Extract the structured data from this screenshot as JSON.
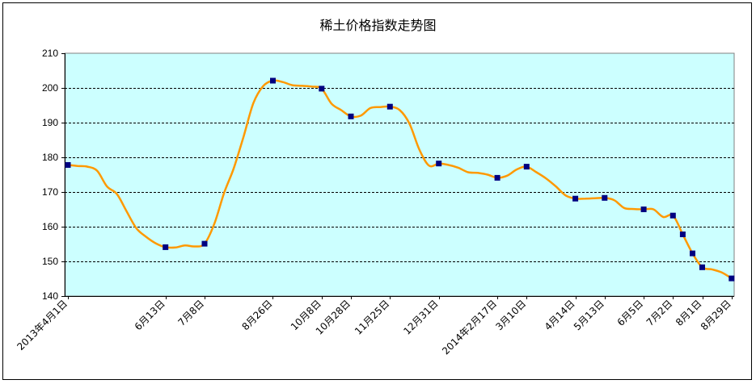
{
  "chart_data": {
    "type": "line",
    "title": "稀土价格指数走势图",
    "xlabel": "",
    "ylabel": "",
    "ylim": [
      140,
      210
    ],
    "yticks": [
      140,
      150,
      160,
      170,
      180,
      190,
      200,
      210
    ],
    "grid": true,
    "legend": "none",
    "colors": {
      "plot_background": "#ccffff",
      "line": "#ff9900",
      "marker": "#000080",
      "grid": "#000000"
    },
    "xticks": [
      {
        "label": "2013年4月1日",
        "index": 0
      },
      {
        "label": "6月13日",
        "index": 10
      },
      {
        "label": "7月8日",
        "index": 14
      },
      {
        "label": "8月26日",
        "index": 21
      },
      {
        "label": "10月8日",
        "index": 26
      },
      {
        "label": "10月28日",
        "index": 29
      },
      {
        "label": "11月25日",
        "index": 33
      },
      {
        "label": "12月31日",
        "index": 38
      },
      {
        "label": "2014年2月17日",
        "index": 44
      },
      {
        "label": "3月10日",
        "index": 47
      },
      {
        "label": "4月14日",
        "index": 52
      },
      {
        "label": "5月13日",
        "index": 55
      },
      {
        "label": "6月5日",
        "index": 59
      },
      {
        "label": "7月2日",
        "index": 62
      },
      {
        "label": "8月1日",
        "index": 65
      },
      {
        "label": "8月29日",
        "index": 68
      }
    ],
    "series": [
      {
        "values": [
          177.8,
          177.5,
          177.3,
          176.1,
          171.6,
          169.5,
          164.5,
          159.6,
          157.1,
          155.2,
          154.1,
          154.0,
          154.6,
          154.3,
          155.1,
          160.8,
          169.7,
          176.9,
          186.0,
          195.6,
          200.5,
          202.1,
          201.7,
          200.8,
          200.6,
          200.4,
          199.8,
          195.5,
          193.6,
          191.8,
          192.0,
          194.2,
          194.5,
          194.6,
          193.6,
          189.7,
          182.3,
          177.6,
          178.2,
          177.8,
          177.0,
          175.7,
          175.5,
          175.0,
          174.1,
          174.7,
          176.5,
          177.3,
          175.7,
          173.9,
          171.6,
          169.0,
          168.1,
          168.1,
          168.2,
          168.3,
          167.6,
          165.4,
          165.1,
          165.0,
          165.0,
          162.8,
          163.2,
          157.8,
          152.3,
          148.3,
          147.7,
          146.8,
          145.1
        ],
        "markers": [
          0,
          10,
          14,
          21,
          26,
          29,
          33,
          38,
          44,
          47,
          52,
          55,
          59,
          62,
          63,
          64,
          65,
          68
        ]
      }
    ]
  }
}
